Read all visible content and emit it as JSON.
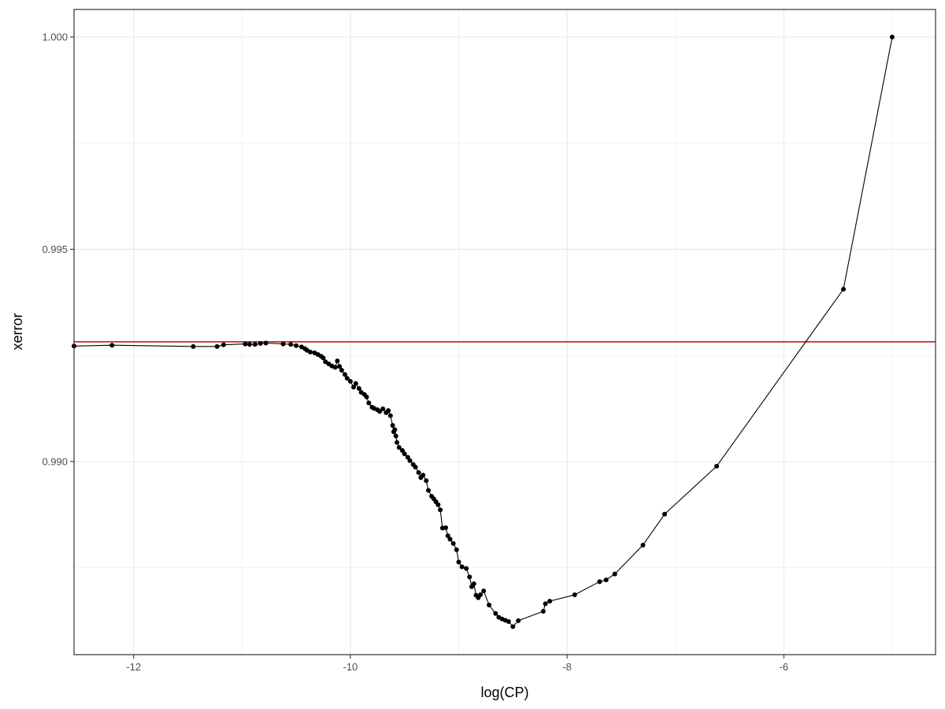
{
  "chart_data": {
    "type": "line",
    "title": "",
    "xlabel": "log(CP)",
    "ylabel": "xerror",
    "xlim": [
      -12.55,
      -4.6
    ],
    "ylim": [
      0.98545,
      1.00065
    ],
    "x_ticks": [
      -12,
      -10,
      -8,
      -6
    ],
    "x_tick_labels": [
      "-12",
      "-10",
      "-8",
      "-6"
    ],
    "y_ticks": [
      0.99,
      0.995,
      1.0
    ],
    "y_tick_labels": [
      "0.990",
      "0.995",
      "1.000"
    ],
    "grid": true,
    "reference_line": {
      "type": "horizontal",
      "y": 0.99282,
      "color": "#cc0000"
    },
    "series": [
      {
        "color": "#000000",
        "x": [
          -12.55,
          -12.2,
          -11.45,
          -11.23,
          -11.17,
          -10.97,
          -10.93,
          -10.88,
          -10.83,
          -10.78,
          -10.62,
          -10.55,
          -10.5,
          -10.45,
          -10.42,
          -10.4,
          -10.37,
          -10.33,
          -10.3,
          -10.27,
          -10.25,
          -10.23,
          -10.2,
          -10.17,
          -10.14,
          -10.12,
          -10.1,
          -10.08,
          -10.05,
          -10.03,
          -10.0,
          -9.97,
          -9.95,
          -9.92,
          -9.9,
          -9.87,
          -9.85,
          -9.83,
          -9.8,
          -9.78,
          -9.75,
          -9.73,
          -9.7,
          -9.67,
          -9.65,
          -9.63,
          -9.61,
          -9.6,
          -9.59,
          -9.58,
          -9.57,
          -9.55,
          -9.52,
          -9.5,
          -9.47,
          -9.45,
          -9.42,
          -9.4,
          -9.37,
          -9.35,
          -9.33,
          -9.3,
          -9.28,
          -9.25,
          -9.23,
          -9.21,
          -9.19,
          -9.17,
          -9.15,
          -9.12,
          -9.1,
          -9.08,
          -9.05,
          -9.02,
          -9.0,
          -8.97,
          -8.93,
          -8.9,
          -8.88,
          -8.86,
          -8.84,
          -8.82,
          -8.8,
          -8.77,
          -8.72,
          -8.66,
          -8.63,
          -8.6,
          -8.57,
          -8.54,
          -8.5,
          -8.45,
          -8.22,
          -8.2,
          -8.16,
          -7.93,
          -7.7,
          -7.64,
          -7.56,
          -7.3,
          -7.1,
          -6.62,
          -5.45,
          -5.0
        ],
        "y": [
          0.99272,
          0.99274,
          0.99271,
          0.99271,
          0.99275,
          0.99277,
          0.99276,
          0.99276,
          0.99278,
          0.99279,
          0.99277,
          0.99276,
          0.99273,
          0.9927,
          0.99266,
          0.99262,
          0.99258,
          0.99256,
          0.99252,
          0.99248,
          0.99244,
          0.99235,
          0.9923,
          0.99225,
          0.99222,
          0.99237,
          0.99224,
          0.99215,
          0.99205,
          0.99196,
          0.99189,
          0.99175,
          0.99184,
          0.99172,
          0.99163,
          0.99158,
          0.99152,
          0.99138,
          0.99128,
          0.99125,
          0.99122,
          0.99118,
          0.99124,
          0.99115,
          0.9912,
          0.99108,
          0.99085,
          0.9907,
          0.99075,
          0.9906,
          0.99045,
          0.99033,
          0.99026,
          0.99018,
          0.9901,
          0.99002,
          0.98993,
          0.98987,
          0.98974,
          0.98962,
          0.98968,
          0.98955,
          0.98932,
          0.98918,
          0.98912,
          0.98905,
          0.98898,
          0.98886,
          0.98843,
          0.98844,
          0.98825,
          0.98817,
          0.98807,
          0.98792,
          0.98763,
          0.98752,
          0.98748,
          0.98728,
          0.98705,
          0.98712,
          0.98685,
          0.98679,
          0.98686,
          0.98695,
          0.98662,
          0.98642,
          0.98633,
          0.98629,
          0.98626,
          0.98623,
          0.98611,
          0.98625,
          0.98647,
          0.98665,
          0.98671,
          0.98686,
          0.98717,
          0.98721,
          0.98735,
          0.98803,
          0.98876,
          0.98989,
          0.99406,
          1.0
        ]
      }
    ]
  }
}
